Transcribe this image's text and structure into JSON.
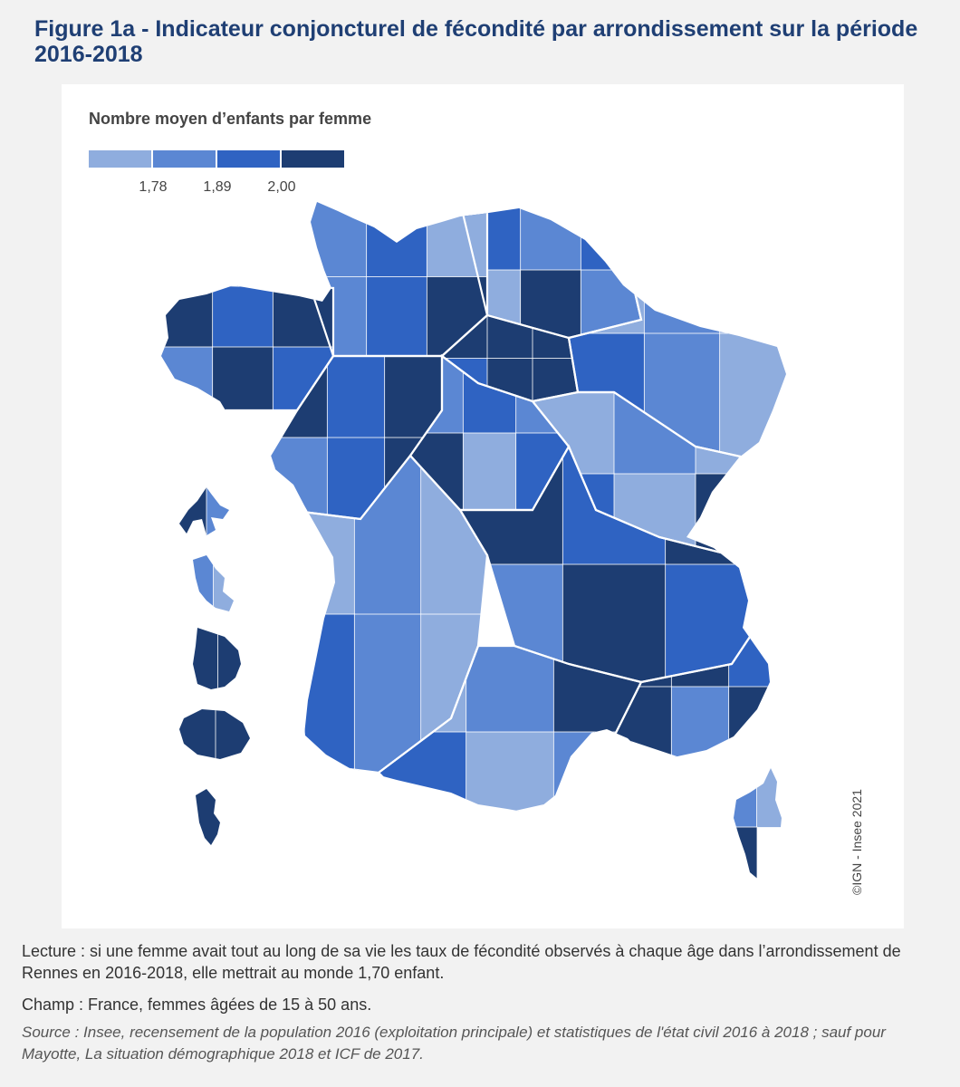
{
  "title": "Figure 1a - Indicateur conjoncturel de fécondité par arrondissement sur la période 2016-2018",
  "legend": {
    "title": "Nombre moyen d’enfants par femme",
    "colors": [
      "#8fadde",
      "#5b87d3",
      "#2f63c2",
      "#1d3d72"
    ],
    "thresholds": [
      "1,78",
      "1,89",
      "2,00"
    ]
  },
  "credit": "©IGN - Insee 2021",
  "notes": {
    "lecture": "Lecture : si une femme avait tout au long de sa vie les taux de fécondité observés à chaque âge dans l’arrondissement de Rennes en 2016-2018, elle mettrait au monde 1,70 enfant.",
    "champ": "Champ : France, femmes âgées de 15 à 50 ans.",
    "source": "Source : Insee, recensement de la population 2016 (exploitation principale) et statistiques de l'état civil 2016 à 2018 ; sauf pour Mayotte, La situation démographique 2018 et ICF de 2017."
  },
  "map": {
    "regions": [
      {
        "name": "Nord-Pas-de-Calais / Picardie",
        "classes": [
          2,
          1,
          2,
          0,
          3,
          1
        ]
      },
      {
        "name": "Normandie",
        "classes": [
          1,
          2,
          0,
          1,
          2,
          3
        ]
      },
      {
        "name": "Île-de-France",
        "classes": [
          3,
          3,
          3,
          2,
          3,
          3
        ]
      },
      {
        "name": "Grand Est",
        "classes": [
          0,
          1,
          0,
          2,
          1,
          0
        ]
      },
      {
        "name": "Bretagne",
        "classes": [
          3,
          2,
          3,
          1,
          3,
          2
        ]
      },
      {
        "name": "Pays de la Loire",
        "classes": [
          3,
          2,
          3,
          1,
          2,
          3
        ]
      },
      {
        "name": "Centre-Val de Loire",
        "classes": [
          1,
          2,
          1,
          3,
          0,
          2
        ]
      },
      {
        "name": "Bourgogne-Franche-Comté",
        "classes": [
          0,
          1,
          0,
          2,
          0,
          3
        ]
      },
      {
        "name": "Nouvelle-Aquitaine",
        "classes": [
          0,
          1,
          0,
          2,
          1,
          0
        ]
      },
      {
        "name": "Auvergne-Rhône-Alpes",
        "classes": [
          3,
          2,
          3,
          1,
          3,
          2
        ]
      },
      {
        "name": "Occitanie",
        "classes": [
          0,
          1,
          3,
          2,
          0,
          1
        ]
      },
      {
        "name": "Provence-Alpes-Côte d'Azur",
        "classes": [
          3,
          3,
          2,
          3,
          1,
          3
        ]
      },
      {
        "name": "Corse",
        "classes": [
          1,
          0,
          3
        ]
      },
      {
        "name": "Guadeloupe",
        "classes": [
          3,
          1
        ]
      },
      {
        "name": "Martinique",
        "classes": [
          1,
          0
        ]
      },
      {
        "name": "Guyane",
        "classes": [
          3,
          3
        ]
      },
      {
        "name": "La Réunion",
        "classes": [
          3,
          3
        ]
      },
      {
        "name": "Mayotte",
        "classes": [
          3
        ]
      }
    ]
  }
}
